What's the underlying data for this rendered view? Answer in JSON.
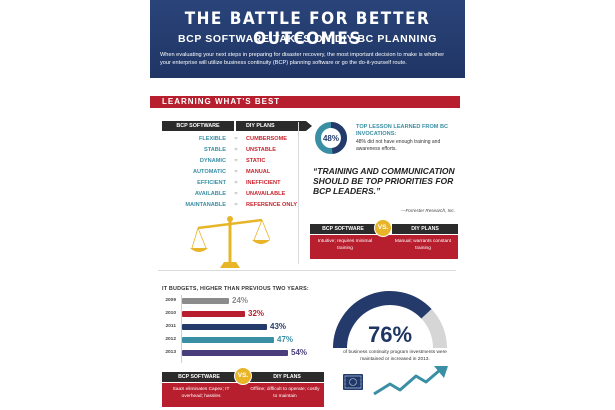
{
  "header": {
    "title": "THE BATTLE FOR BETTER OUTCOMES",
    "subtitle": "BCP SOFTWARE TAKES ON DIY BC PLANNING",
    "intro": "When evaluating your next steps in preparing for disaster recovery, the most important decision to make is whether your enterprise will utilize business continuity (BCP) planning software or go the do-it-yourself route."
  },
  "section": {
    "title": "LEARNING WHAT'S BEST"
  },
  "comparison": {
    "left_header": "BCP SOFTWARE",
    "right_header": "DIY PLANS",
    "vs_symbol": "=",
    "rows": [
      {
        "bcp": "FLEXIBLE",
        "diy": "CUMBERSOME"
      },
      {
        "bcp": "STABLE",
        "diy": "UNSTABLE"
      },
      {
        "bcp": "DYNAMIC",
        "diy": "STATIC"
      },
      {
        "bcp": "AUTOMATIC",
        "diy": "MANUAL"
      },
      {
        "bcp": "EFFICIENT",
        "diy": "INEFFICIENT"
      },
      {
        "bcp": "AVAILABLE",
        "diy": "UNAVAILABLE"
      },
      {
        "bcp": "MAINTANABLE",
        "diy": "REFERENCE ONLY"
      }
    ]
  },
  "lesson": {
    "percent_label": "48%",
    "percent_value": 48,
    "title": "TOP LESSON LEARNED FROM BC INVOCATIONS:",
    "body": "48% did not have enough training and awareness efforts."
  },
  "quote": {
    "text": "“TRAINING AND COMMUNICATION SHOULD BE TOP PRIORITIES FOR BCP LEADERS.”",
    "attribution": "—Forrester Research, Inc."
  },
  "training_vs": {
    "left_header": "BCP SOFTWARE",
    "right_header": "DIY PLANS",
    "badge": "VS.",
    "left_text": "Intuitive; requires minimal training",
    "right_text": "Manual; warrants constant training"
  },
  "budgets": {
    "title": "IT BUDGETS, HIGHER THAN PREVIOUS TWO YEARS:",
    "rows": [
      {
        "year": "2009",
        "label": "24%",
        "value": 24,
        "color": "#8b8b8b"
      },
      {
        "year": "2010",
        "label": "32%",
        "value": 32,
        "color": "#b71f2e"
      },
      {
        "year": "2011",
        "label": "43%",
        "value": 43,
        "color": "#233a6b"
      },
      {
        "year": "2012",
        "label": "47%",
        "value": 47,
        "color": "#3a8fa4"
      },
      {
        "year": "2013",
        "label": "54%",
        "value": 54,
        "color": "#4a3d7c"
      }
    ]
  },
  "cost_vs": {
    "left_header": "BCP SOFTWARE",
    "right_header": "DIY PLANS",
    "badge": "VS.",
    "left_text": "SaaS eliminates Capex; IT overhead; hassles",
    "right_text": "Offline; difficult to operate; costly to maintain"
  },
  "investments": {
    "percent_label": "76%",
    "percent_value": 76,
    "text": "of business continuity program investments were maintained or increased in 2013."
  },
  "colors": {
    "navy": "#233a6b",
    "red": "#b71f2e",
    "teal": "#3a8fa4",
    "gold": "#e8b428",
    "dark": "#2b2b2b"
  },
  "icons": [
    "scale-icon",
    "money-icon",
    "trend-arrow-icon"
  ]
}
